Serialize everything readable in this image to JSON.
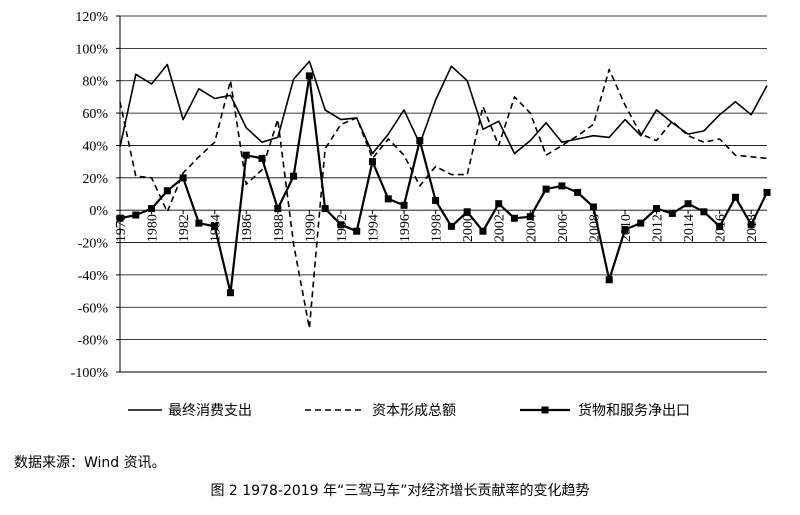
{
  "chart_data": {
    "type": "line",
    "x": [
      1978,
      1979,
      1980,
      1981,
      1982,
      1983,
      1984,
      1985,
      1986,
      1987,
      1988,
      1989,
      1990,
      1991,
      1992,
      1993,
      1994,
      1995,
      1996,
      1997,
      1998,
      1999,
      2000,
      2001,
      2002,
      2003,
      2004,
      2005,
      2006,
      2007,
      2008,
      2009,
      2010,
      2011,
      2012,
      2013,
      2014,
      2015,
      2016,
      2017,
      2018,
      2019
    ],
    "x_tick_labels": [
      "1978",
      "1980",
      "1982",
      "1984",
      "1986",
      "1988",
      "1990",
      "1992",
      "1994",
      "1996",
      "1998",
      "2000",
      "2002",
      "2004",
      "2006",
      "2008",
      "2010",
      "2012",
      "2014",
      "2016",
      "2018"
    ],
    "y_tick_labels": [
      "120%",
      "100%",
      "80%",
      "60%",
      "40%",
      "20%",
      "0%",
      "-20%",
      "-40%",
      "-60%",
      "-80%",
      "-100%"
    ],
    "ylim": [
      -100,
      120
    ],
    "series": [
      {
        "name": "最终消费支出",
        "style": "solid",
        "values": [
          39,
          84,
          78,
          90,
          56,
          75,
          69,
          71,
          51,
          42,
          45,
          81,
          92,
          62,
          56,
          57,
          35,
          47,
          62,
          41,
          68,
          89,
          80,
          50,
          55,
          35,
          43,
          54,
          42,
          44,
          46,
          45,
          56,
          46,
          62,
          54,
          47,
          49,
          59,
          67,
          59,
          77
        ]
      },
      {
        "name": "资本形成总额",
        "style": "dashed",
        "values": [
          67,
          21,
          20,
          -1,
          23,
          33,
          42,
          80,
          16,
          25,
          56,
          -21,
          -73,
          38,
          53,
          57,
          32,
          44,
          34,
          15,
          27,
          22,
          22,
          64,
          40,
          70,
          60,
          34,
          40,
          46,
          53,
          87,
          65,
          47,
          43,
          55,
          46,
          42,
          44,
          34,
          33,
          32
        ]
      },
      {
        "name": "货物和服务净出口",
        "style": "solid-square",
        "values": [
          -5,
          -3,
          1,
          12,
          20,
          -8,
          -10,
          -51,
          34,
          32,
          1,
          21,
          83,
          1,
          -9,
          -13,
          30,
          7,
          3,
          43,
          6,
          -10,
          -1,
          -13,
          4,
          -5,
          -4,
          13,
          15,
          11,
          2,
          -43,
          -12,
          -8,
          1,
          -2,
          4,
          -1,
          -10,
          8,
          -9,
          11
        ]
      }
    ]
  },
  "source_note": "数据来源：Wind 资讯。",
  "figure_title": "图 2 1978-2019 年“三驾马车”对经济增长贡献率的变化趋势",
  "colors": {
    "line": "#000000",
    "grid": "#000000",
    "background": "#ffffff"
  }
}
